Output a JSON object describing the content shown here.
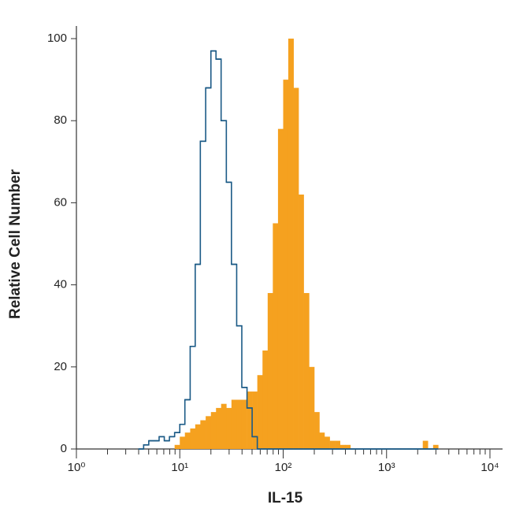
{
  "chart_data": {
    "type": "histogram",
    "x_label": "IL-15",
    "y_label": "Relative Cell Number",
    "xscale": "log",
    "xlim": [
      1,
      10000
    ],
    "ylim": [
      0,
      103
    ],
    "xticks": [
      {
        "value": 1,
        "label": "10⁰"
      },
      {
        "value": 10,
        "label": "10¹"
      },
      {
        "value": 100,
        "label": "10²"
      },
      {
        "value": 1000,
        "label": "10³"
      },
      {
        "value": 10000,
        "label": "10⁴"
      }
    ],
    "xminorticks": [
      2,
      3,
      4,
      5,
      6,
      7,
      8,
      9,
      20,
      30,
      40,
      50,
      60,
      70,
      80,
      90,
      200,
      300,
      400,
      500,
      600,
      700,
      800,
      900,
      2000,
      3000,
      4000,
      5000,
      6000,
      7000,
      8000,
      9000
    ],
    "yticks": [
      0,
      20,
      40,
      60,
      80,
      100
    ],
    "bins": [
      3.98,
      4.47,
      5.01,
      5.62,
      6.31,
      7.08,
      7.94,
      8.91,
      10,
      11.2,
      12.6,
      14.1,
      15.8,
      17.8,
      20.0,
      22.4,
      25.1,
      28.2,
      31.6,
      35.5,
      39.8,
      44.7,
      50.1,
      56.2,
      63.1,
      70.8,
      79.4,
      89.1,
      100,
      112,
      126,
      141,
      158,
      178,
      200,
      224,
      251,
      282,
      316,
      355,
      398,
      447,
      501,
      562,
      631,
      708,
      794,
      891,
      1000,
      1120,
      1260,
      1410,
      1580,
      1780,
      2000,
      2240,
      2510,
      2820,
      3160
    ],
    "series": [
      {
        "color": "#f5a11f",
        "style": "filled",
        "values": [
          0,
          0,
          0,
          0,
          0,
          0,
          0,
          1,
          3,
          4,
          5,
          6,
          7,
          8,
          9,
          10,
          11,
          10,
          12,
          12,
          12,
          14,
          14,
          18,
          24,
          38,
          55,
          78,
          90,
          100,
          88,
          62,
          38,
          20,
          9,
          4,
          3,
          2,
          2,
          1,
          1,
          0,
          0,
          0,
          0,
          0,
          0,
          0,
          0,
          0,
          0,
          0,
          0,
          0,
          0,
          2,
          0,
          1
        ]
      },
      {
        "color": "#1b5a86",
        "style": "outline",
        "values": [
          0,
          1,
          2,
          2,
          3,
          2,
          3,
          4,
          6,
          12,
          25,
          45,
          75,
          88,
          97,
          95,
          80,
          65,
          45,
          30,
          15,
          10,
          3,
          0,
          0,
          0,
          0,
          0,
          0,
          0,
          0,
          0,
          0,
          0,
          0,
          0,
          0,
          0,
          0,
          0,
          0,
          0,
          0,
          0,
          0,
          0,
          0,
          0,
          0,
          0,
          0,
          0,
          0,
          0,
          0,
          0,
          0,
          0
        ]
      }
    ]
  }
}
